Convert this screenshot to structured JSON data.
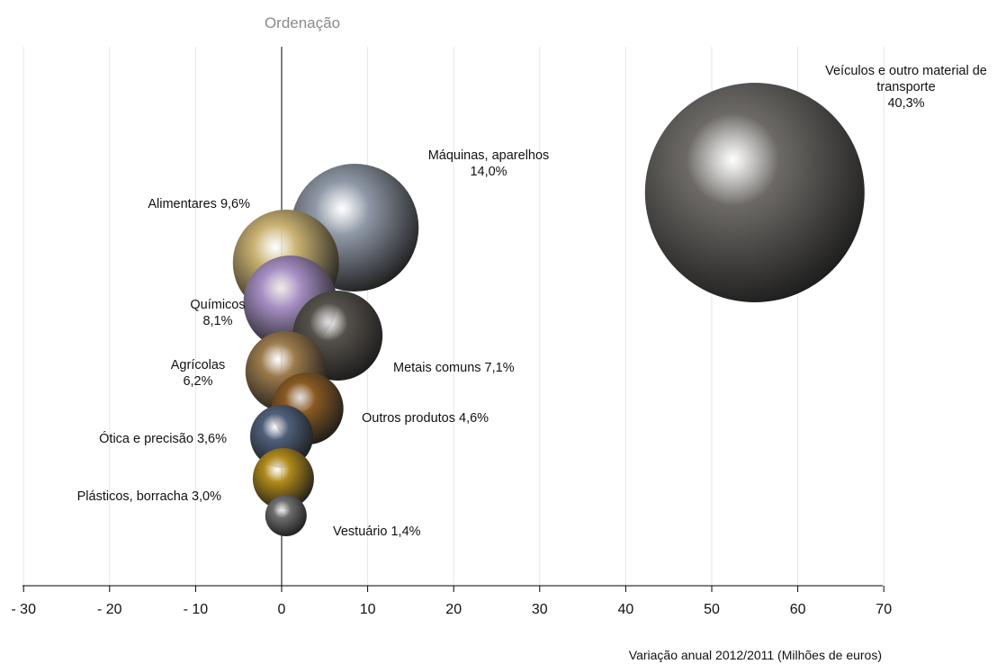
{
  "chart_data": {
    "type": "scatter",
    "title": "Ordenação",
    "xlabel": "Variação anual 2012/2011 (Milhões  de euros)",
    "ylabel": "",
    "xlim": [
      -30,
      70
    ],
    "xticks": [
      "- 30",
      "- 20",
      "- 10",
      "0",
      "10",
      "20",
      "30",
      "40",
      "50",
      "60",
      "70"
    ],
    "grid": true,
    "points": [
      {
        "label": [
          "Veículos e outro material de",
          "transporte",
          "40,3%"
        ],
        "x": 55,
        "share": 40.3,
        "color": "#6d6a66"
      },
      {
        "label": [
          "Máquinas, aparelhos",
          "14,0%"
        ],
        "x": 8.5,
        "share": 14.0,
        "color": "#8f98a6"
      },
      {
        "label": [
          "Alimentares 9,6%"
        ],
        "x": 0.5,
        "share": 9.6,
        "color": "#c8b070"
      },
      {
        "label": [
          "Químicos",
          "8,1%"
        ],
        "x": 1,
        "share": 8.1,
        "color": "#a78fc4"
      },
      {
        "label": [
          "Metais comuns 7,1%"
        ],
        "x": 6.5,
        "share": 7.1,
        "color": "#55504a"
      },
      {
        "label": [
          "Agrícolas",
          "6,2%"
        ],
        "x": 0.5,
        "share": 6.2,
        "color": "#9c7a4c"
      },
      {
        "label": [
          "Outros produtos 4,6%"
        ],
        "x": 3,
        "share": 4.6,
        "color": "#8a5a22"
      },
      {
        "label": [
          "Ótica e precisão 3,6%"
        ],
        "x": 0,
        "share": 3.6,
        "color": "#4f5f7a"
      },
      {
        "label": [
          "Plásticos, borracha 3,0%"
        ],
        "x": 0.2,
        "share": 3.0,
        "color": "#b08a1a"
      },
      {
        "label": [
          "Vestuário 1,4%"
        ],
        "x": 0.5,
        "share": 1.4,
        "color": "#6e6e6e"
      }
    ]
  }
}
